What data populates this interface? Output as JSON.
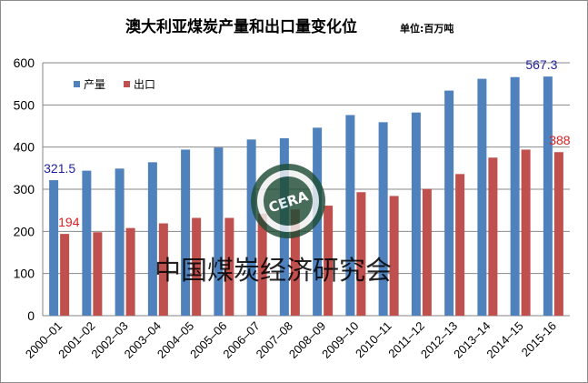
{
  "chart_data": {
    "type": "bar",
    "title": "澳大利亚煤炭产量和出口量变化位",
    "unit_label": "单位:百万吨",
    "categories": [
      "2000–01",
      "2001–02",
      "2002–03",
      "2003–04",
      "2004–05",
      "2005–06",
      "2006–07",
      "2007–08",
      "2008–09",
      "2009–10",
      "2010–11",
      "2011–12",
      "2012–13",
      "2013–14",
      "2014–15",
      "2015-16"
    ],
    "series": [
      {
        "name": "产量",
        "color": "#4f81bd",
        "values": [
          321.5,
          344,
          349,
          364,
          394,
          399,
          418,
          421,
          446,
          476,
          459,
          482,
          534,
          562,
          566,
          567.3
        ]
      },
      {
        "name": "出口",
        "color": "#c0504d",
        "values": [
          194,
          198,
          208,
          219,
          232,
          232,
          242,
          252,
          261,
          293,
          284,
          301,
          336,
          375,
          394,
          388
        ]
      }
    ],
    "ylim": [
      0,
      600
    ],
    "yticks": [
      "0",
      "100",
      "200",
      "300",
      "400",
      "500",
      "600"
    ],
    "gridlines": true,
    "legend_position": "top-left",
    "annotations": [
      {
        "text": "321.5",
        "series": 0,
        "index": 0,
        "color": "#1f1f9f"
      },
      {
        "text": "194",
        "series": 1,
        "index": 0,
        "color": "#e02020"
      },
      {
        "text": "567.3",
        "series": 0,
        "index": 15,
        "color": "#1f1f9f"
      },
      {
        "text": "388",
        "series": 1,
        "index": 15,
        "color": "#e02020"
      }
    ]
  },
  "watermark": {
    "text": "中国煤炭经济研究会",
    "logo_text": "CERA"
  }
}
